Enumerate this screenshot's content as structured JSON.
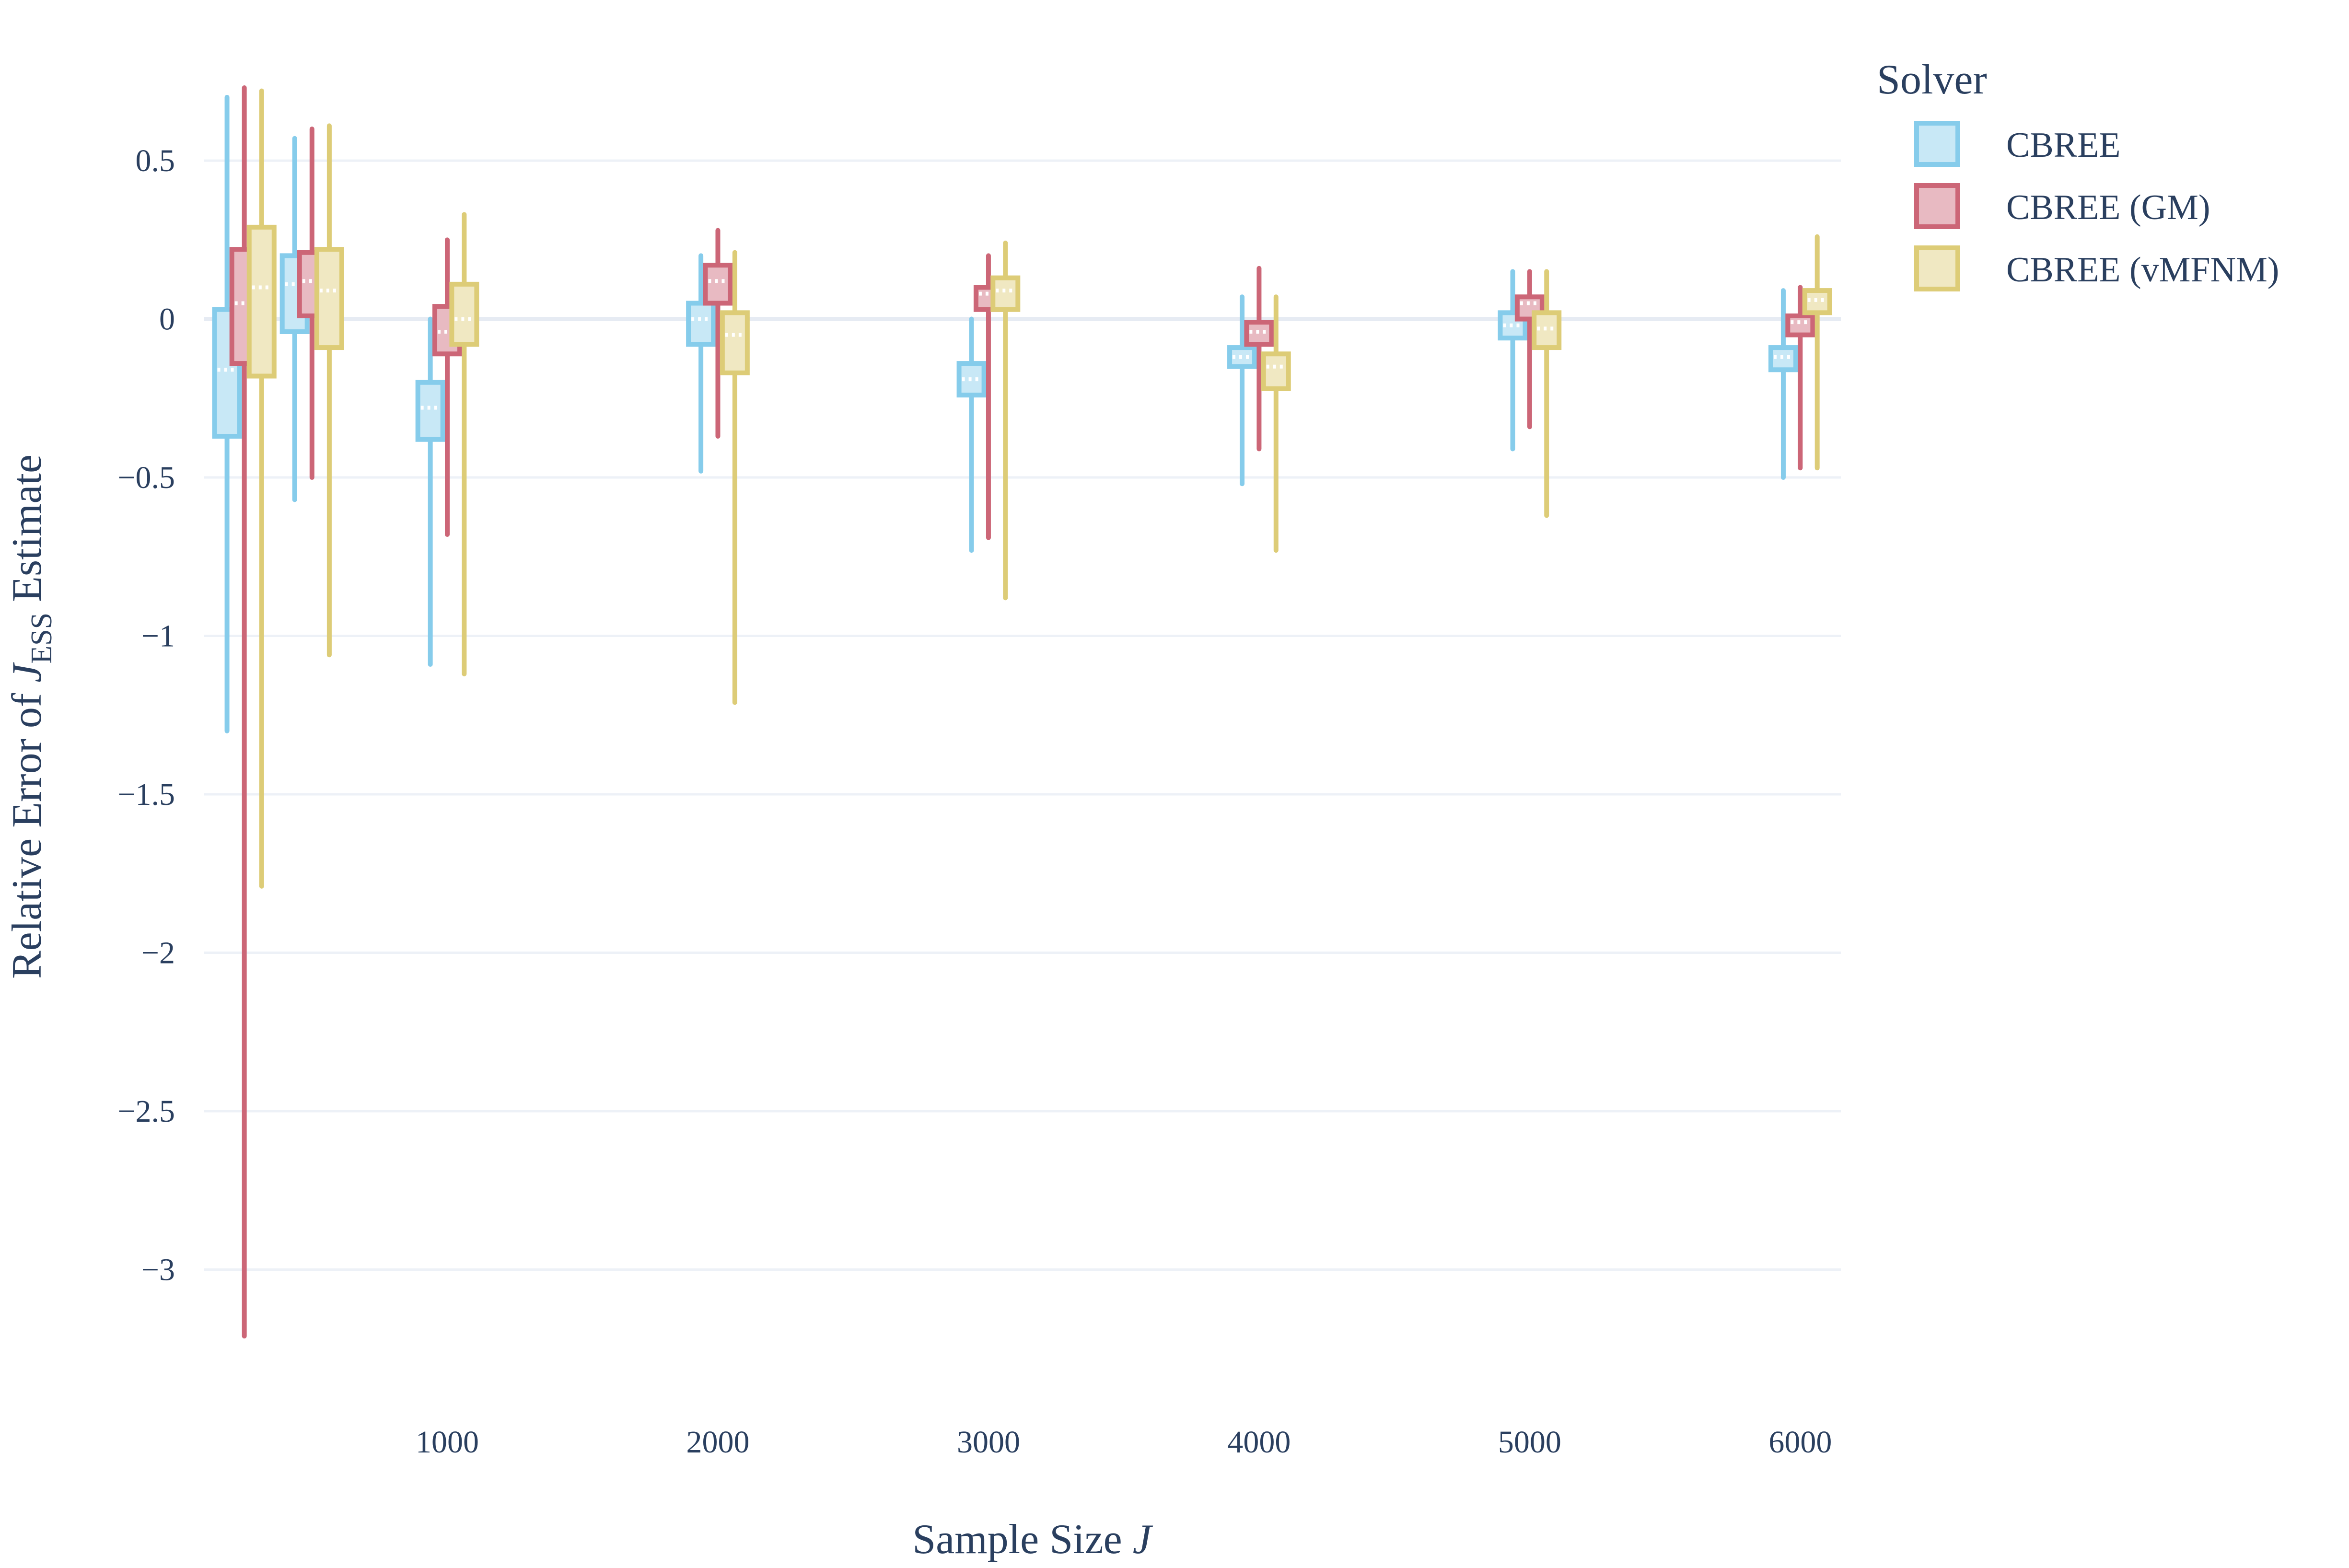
{
  "chart_data": {
    "type": "box",
    "xlabel": "Sample Size J",
    "ylabel": "Relative Error of J_ESS Estimate",
    "ylabel_parts": {
      "prefix": "Relative Error of ",
      "var": "J",
      "sub": "ESS",
      "suffix": " Estimate"
    },
    "xlabel_parts": {
      "prefix": "Sample Size ",
      "var": "J"
    },
    "ylim": [
      -3.32,
      0.78
    ],
    "xlim": [
      100,
      6150
    ],
    "x_ticks": [
      1000,
      2000,
      3000,
      4000,
      5000,
      6000
    ],
    "y_ticks": [
      -3,
      -2.5,
      -2,
      -1.5,
      -1,
      -0.5,
      0,
      0.5
    ],
    "y_tick_labels": [
      "−3",
      "−2.5",
      "−2",
      "−1.5",
      "−1",
      "−0.5",
      "0",
      "0.5"
    ],
    "grid": true,
    "legend": {
      "title": "Solver",
      "placement": "top-right",
      "entries": [
        "CBREE",
        "CBREE (GM)",
        "CBREE (vMFNM)"
      ]
    },
    "series": [
      {
        "name": "CBREE",
        "color": "#86CCEB",
        "boxes": [
          {
            "x": 250,
            "min": -1.3,
            "q1": -0.37,
            "median": -0.16,
            "q3": 0.03,
            "max": 0.7
          },
          {
            "x": 500,
            "min": -0.57,
            "q1": -0.04,
            "median": 0.11,
            "q3": 0.2,
            "max": 0.57
          },
          {
            "x": 1000,
            "min": -1.09,
            "q1": -0.38,
            "median": -0.28,
            "q3": -0.2,
            "max": 0.0
          },
          {
            "x": 2000,
            "min": -0.48,
            "q1": -0.08,
            "median": 0.0,
            "q3": 0.05,
            "max": 0.2
          },
          {
            "x": 3000,
            "min": -0.73,
            "q1": -0.24,
            "median": -0.19,
            "q3": -0.14,
            "max": 0.0
          },
          {
            "x": 4000,
            "min": -0.52,
            "q1": -0.15,
            "median": -0.12,
            "q3": -0.09,
            "max": 0.07
          },
          {
            "x": 5000,
            "min": -0.41,
            "q1": -0.06,
            "median": -0.02,
            "q3": 0.02,
            "max": 0.15
          },
          {
            "x": 6000,
            "min": -0.5,
            "q1": -0.16,
            "median": -0.12,
            "q3": -0.09,
            "max": 0.09
          }
        ]
      },
      {
        "name": "CBREE (GM)",
        "color": "#CC6677",
        "boxes": [
          {
            "x": 250,
            "min": -3.21,
            "q1": -0.14,
            "median": 0.05,
            "q3": 0.22,
            "max": 0.73
          },
          {
            "x": 500,
            "min": -0.5,
            "q1": 0.01,
            "median": 0.12,
            "q3": 0.21,
            "max": 0.6
          },
          {
            "x": 1000,
            "min": -0.68,
            "q1": -0.11,
            "median": -0.04,
            "q3": 0.04,
            "max": 0.25
          },
          {
            "x": 2000,
            "min": -0.37,
            "q1": 0.05,
            "median": 0.12,
            "q3": 0.17,
            "max": 0.28
          },
          {
            "x": 3000,
            "min": -0.69,
            "q1": 0.03,
            "median": 0.08,
            "q3": 0.1,
            "max": 0.2
          },
          {
            "x": 4000,
            "min": -0.41,
            "q1": -0.08,
            "median": -0.04,
            "q3": -0.01,
            "max": 0.16
          },
          {
            "x": 5000,
            "min": -0.34,
            "q1": 0.0,
            "median": 0.05,
            "q3": 0.07,
            "max": 0.15
          },
          {
            "x": 6000,
            "min": -0.47,
            "q1": -0.05,
            "median": -0.01,
            "q3": 0.01,
            "max": 0.1
          }
        ]
      },
      {
        "name": "CBREE (vMFNM)",
        "color": "#DDCC77",
        "boxes": [
          {
            "x": 250,
            "min": -1.79,
            "q1": -0.18,
            "median": 0.1,
            "q3": 0.29,
            "max": 0.72
          },
          {
            "x": 500,
            "min": -1.06,
            "q1": -0.09,
            "median": 0.09,
            "q3": 0.22,
            "max": 0.61
          },
          {
            "x": 1000,
            "min": -1.12,
            "q1": -0.08,
            "median": 0.0,
            "q3": 0.11,
            "max": 0.33
          },
          {
            "x": 2000,
            "min": -1.21,
            "q1": -0.17,
            "median": -0.05,
            "q3": 0.02,
            "max": 0.21
          },
          {
            "x": 3000,
            "min": -0.88,
            "q1": 0.03,
            "median": 0.09,
            "q3": 0.13,
            "max": 0.24
          },
          {
            "x": 4000,
            "min": -0.73,
            "q1": -0.22,
            "median": -0.15,
            "q3": -0.11,
            "max": 0.07
          },
          {
            "x": 5000,
            "min": -0.62,
            "q1": -0.09,
            "median": -0.03,
            "q3": 0.02,
            "max": 0.15
          },
          {
            "x": 6000,
            "min": -0.47,
            "q1": 0.02,
            "median": 0.06,
            "q3": 0.09,
            "max": 0.26
          }
        ]
      }
    ]
  }
}
